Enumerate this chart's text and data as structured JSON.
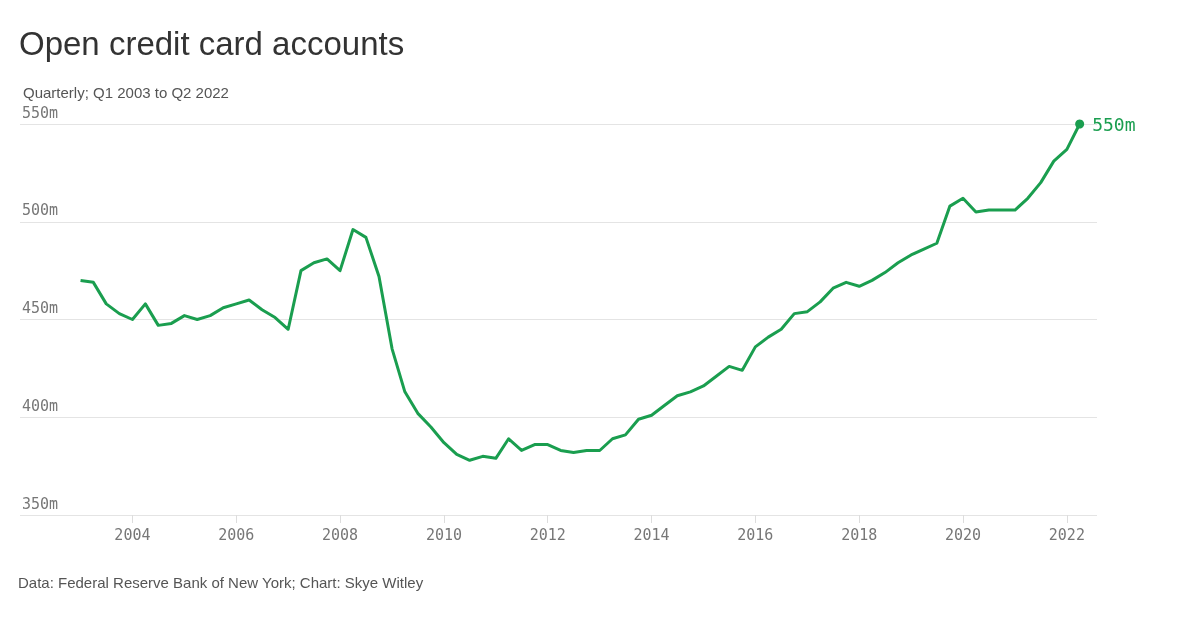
{
  "chart_data": {
    "type": "line",
    "title": "Open credit card accounts",
    "subtitle": "Quarterly; Q1 2003 to Q2 2022",
    "annotations": [
      "Data: Federal Reserve Bank of New York; Chart: Skye Witley"
    ],
    "x": [
      "2003-01",
      "2003-04",
      "2003-07",
      "2003-10",
      "2004-01",
      "2004-04",
      "2004-07",
      "2004-10",
      "2005-01",
      "2005-04",
      "2005-07",
      "2005-10",
      "2006-01",
      "2006-04",
      "2006-07",
      "2006-10",
      "2007-01",
      "2007-04",
      "2007-07",
      "2007-10",
      "2008-01",
      "2008-04",
      "2008-07",
      "2008-10",
      "2009-01",
      "2009-04",
      "2009-07",
      "2009-10",
      "2010-01",
      "2010-04",
      "2010-07",
      "2010-10",
      "2011-01",
      "2011-04",
      "2011-07",
      "2011-10",
      "2012-01",
      "2012-04",
      "2012-07",
      "2012-10",
      "2013-01",
      "2013-04",
      "2013-07",
      "2013-10",
      "2014-01",
      "2014-04",
      "2014-07",
      "2014-10",
      "2015-01",
      "2015-04",
      "2015-07",
      "2015-10",
      "2016-01",
      "2016-04",
      "2016-07",
      "2016-10",
      "2017-01",
      "2017-04",
      "2017-07",
      "2017-10",
      "2018-01",
      "2018-04",
      "2018-07",
      "2018-10",
      "2019-01",
      "2019-04",
      "2019-07",
      "2019-10",
      "2020-01",
      "2020-04",
      "2020-07",
      "2020-10",
      "2021-01",
      "2021-04",
      "2021-07",
      "2021-10",
      "2022-01",
      "2022-04"
    ],
    "series": [
      {
        "color": "#1a9e4f",
        "values": [
          470,
          469,
          458,
          453,
          450,
          458,
          447,
          448,
          452,
          450,
          452,
          456,
          458,
          460,
          455,
          451,
          445,
          475,
          479,
          481,
          475,
          496,
          492,
          472,
          435,
          413,
          402,
          395,
          387,
          381,
          378,
          380,
          379,
          389,
          383,
          386,
          386,
          383,
          382,
          383,
          383,
          389,
          391,
          399,
          401,
          406,
          411,
          413,
          416,
          421,
          426,
          424,
          436,
          441,
          445,
          453,
          454,
          459,
          466,
          469,
          467,
          470,
          474,
          479,
          483,
          486,
          489,
          508,
          512,
          505,
          506,
          506,
          506,
          512,
          520,
          531,
          537,
          550
        ],
        "value_labels": [
          null,
          null,
          null,
          null,
          null,
          null,
          null,
          null,
          null,
          null,
          null,
          null,
          null,
          null,
          null,
          null,
          null,
          null,
          null,
          null,
          null,
          null,
          null,
          null,
          null,
          null,
          null,
          null,
          null,
          null,
          null,
          null,
          null,
          null,
          null,
          null,
          null,
          null,
          null,
          null,
          null,
          null,
          null,
          null,
          null,
          null,
          null,
          null,
          null,
          null,
          null,
          null,
          null,
          null,
          null,
          null,
          null,
          null,
          null,
          null,
          null,
          null,
          null,
          null,
          null,
          null,
          null,
          null,
          null,
          null,
          null,
          null,
          null,
          null,
          null,
          null,
          null,
          "550m"
        ]
      }
    ],
    "xlim": [
      "2001-11",
      "2022-08"
    ],
    "xticks": [
      {
        "value": "2004",
        "label": "2004"
      },
      {
        "value": "2006",
        "label": "2006"
      },
      {
        "value": "2008",
        "label": "2008"
      },
      {
        "value": "2010",
        "label": "2010"
      },
      {
        "value": "2012",
        "label": "2012"
      },
      {
        "value": "2014",
        "label": "2014"
      },
      {
        "value": "2016",
        "label": "2016"
      },
      {
        "value": "2018",
        "label": "2018"
      },
      {
        "value": "2020",
        "label": "2020"
      },
      {
        "value": "2022",
        "label": "2022"
      }
    ],
    "ylim": [
      350,
      550
    ],
    "yticks": [
      {
        "value": 350,
        "label": "350m"
      },
      {
        "value": 400,
        "label": "400m"
      },
      {
        "value": 450,
        "label": "450m"
      },
      {
        "value": 500,
        "label": "500m"
      },
      {
        "value": 550,
        "label": "550m"
      }
    ],
    "grid": "y",
    "marker": "none",
    "line_style": "solid"
  }
}
